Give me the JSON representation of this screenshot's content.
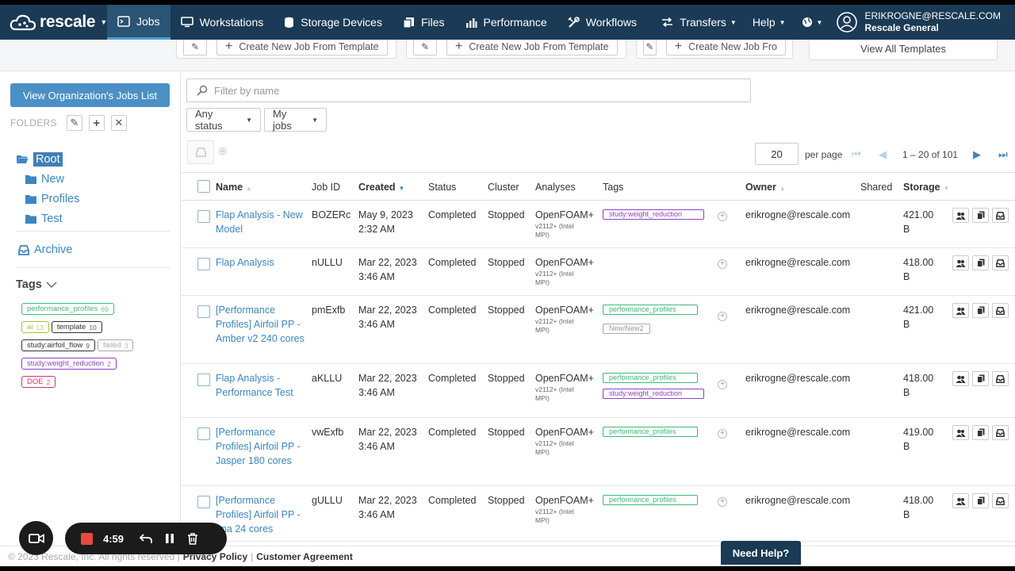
{
  "nav": {
    "brand": "rescale",
    "items": [
      {
        "label": "Jobs",
        "icon": "jobs-icon",
        "active": true
      },
      {
        "label": "Workstations",
        "icon": "monitor-icon"
      },
      {
        "label": "Storage Devices",
        "icon": "database-icon"
      },
      {
        "label": "Files",
        "icon": "files-icon"
      },
      {
        "label": "Performance",
        "icon": "bar-chart-icon"
      },
      {
        "label": "Workflows",
        "icon": "tools-icon"
      }
    ],
    "transfers": "Transfers",
    "help": "Help",
    "user_email": "ERIKROGNE@RESCALE.COM",
    "user_org": "Rescale General"
  },
  "templates": {
    "create_label": "Create New Job From Template",
    "create_label_truncated": "Create New Job Fro",
    "view_all": "View All Templates"
  },
  "sidebar": {
    "org_button": "View Organization's Jobs List",
    "folders_label": "FOLDERS",
    "root": "Root",
    "children": [
      "New",
      "Profiles",
      "Test"
    ],
    "archive": "Archive",
    "tags_label": "Tags",
    "tags": [
      {
        "name": "performance_profiles",
        "count": "69",
        "color": "#3dba7a"
      },
      {
        "name": "ai",
        "count": "13",
        "color": "#a9c23b"
      },
      {
        "name": "template",
        "count": "10",
        "color": "#333333"
      },
      {
        "name": "study:airfoil_flow",
        "count": "9",
        "color": "#333333"
      },
      {
        "name": "failed",
        "count": "3",
        "color": "#aaaaaa"
      },
      {
        "name": "study:weight_reduction",
        "count": "2",
        "color": "#8b44c6"
      },
      {
        "name": "DOE",
        "count": "2",
        "color": "#d6336c"
      }
    ]
  },
  "filter": {
    "placeholder": "Filter by name"
  },
  "dropdowns": {
    "status": "Any status",
    "owner": "My jobs"
  },
  "pagination": {
    "per_page": "20",
    "per_page_label": "per page",
    "range": "1 – 20 of 101"
  },
  "columns": {
    "name": "Name",
    "job_id": "Job ID",
    "created": "Created",
    "status": "Status",
    "cluster": "Cluster",
    "analyses": "Analyses",
    "tags": "Tags",
    "owner": "Owner",
    "shared": "Shared",
    "storage": "Storage"
  },
  "jobs": [
    {
      "name": "Flap Analysis - New Model",
      "id": "BOZERc",
      "created": "May 9, 2023 2:32 AM",
      "status": "Completed",
      "cluster": "Stopped",
      "analysis": "OpenFOAM+",
      "analysis_sub": "v2112+ (Intel MPI)",
      "tags": [
        {
          "name": "study:weight_reduction",
          "color": "#8b44c6"
        }
      ],
      "owner": "erikrogne@rescale.com",
      "storage": "421.00 B"
    },
    {
      "name": "Flap Analysis",
      "id": "nULLU",
      "created": "Mar 22, 2023 3:46 AM",
      "status": "Completed",
      "cluster": "Stopped",
      "analysis": "OpenFOAM+",
      "analysis_sub": "v2112+ (Intel MPI)",
      "tags": [],
      "owner": "erikrogne@rescale.com",
      "storage": "418.00 B"
    },
    {
      "name": "[Performance Profiles] Airfoil PP - Amber v2 240 cores",
      "id": "pmExfb",
      "created": "Mar 22, 2023 3:46 AM",
      "status": "Completed",
      "cluster": "Stopped",
      "analysis": "OpenFOAM+",
      "analysis_sub": "v2112+ (Intel MPI)",
      "tags": [
        {
          "name": "performance_profiles",
          "color": "#3dba7a"
        },
        {
          "name": "New/New2",
          "color": "#aaaaaa"
        }
      ],
      "owner": "erikrogne@rescale.com",
      "storage": "421.00 B"
    },
    {
      "name": "Flap Analysis - Performance Test",
      "id": "aKLLU",
      "created": "Mar 22, 2023 3:46 AM",
      "status": "Completed",
      "cluster": "Stopped",
      "analysis": "OpenFOAM+",
      "analysis_sub": "v2112+ (Intel MPI)",
      "tags": [
        {
          "name": "performance_profiles",
          "color": "#3dba7a"
        },
        {
          "name": "study:weight_reduction",
          "color": "#8b44c6"
        }
      ],
      "owner": "erikrogne@rescale.com",
      "storage": "418.00 B"
    },
    {
      "name": "[Performance Profiles] Airfoil PP - Jasper 180 cores",
      "id": "vwExfb",
      "created": "Mar 22, 2023 3:46 AM",
      "status": "Completed",
      "cluster": "Stopped",
      "analysis": "OpenFOAM+",
      "analysis_sub": "v2112+ (Intel MPI)",
      "tags": [
        {
          "name": "performance_profiles",
          "color": "#3dba7a"
        }
      ],
      "owner": "erikrogne@rescale.com",
      "storage": "419.00 B"
    },
    {
      "name": "[Performance Profiles] Airfoil PP - una 24 cores",
      "id": "gULLU",
      "created": "Mar 22, 2023 3:46 AM",
      "status": "Completed",
      "cluster": "Stopped",
      "analysis": "OpenFOAM+",
      "analysis_sub": "v2112+ (Intel MPI)",
      "tags": [
        {
          "name": "performance_profiles",
          "color": "#3dba7a"
        }
      ],
      "owner": "erikrogne@rescale.com",
      "storage": "418.00 B"
    }
  ],
  "footer": {
    "copyright": "© 2023 Rescale, Inc. All rights reserved |",
    "privacy": "Privacy Policy",
    "sep": "|",
    "agreement": "Customer Agreement",
    "need_help": "Need Help?"
  },
  "recorder": {
    "time": "4:59"
  }
}
